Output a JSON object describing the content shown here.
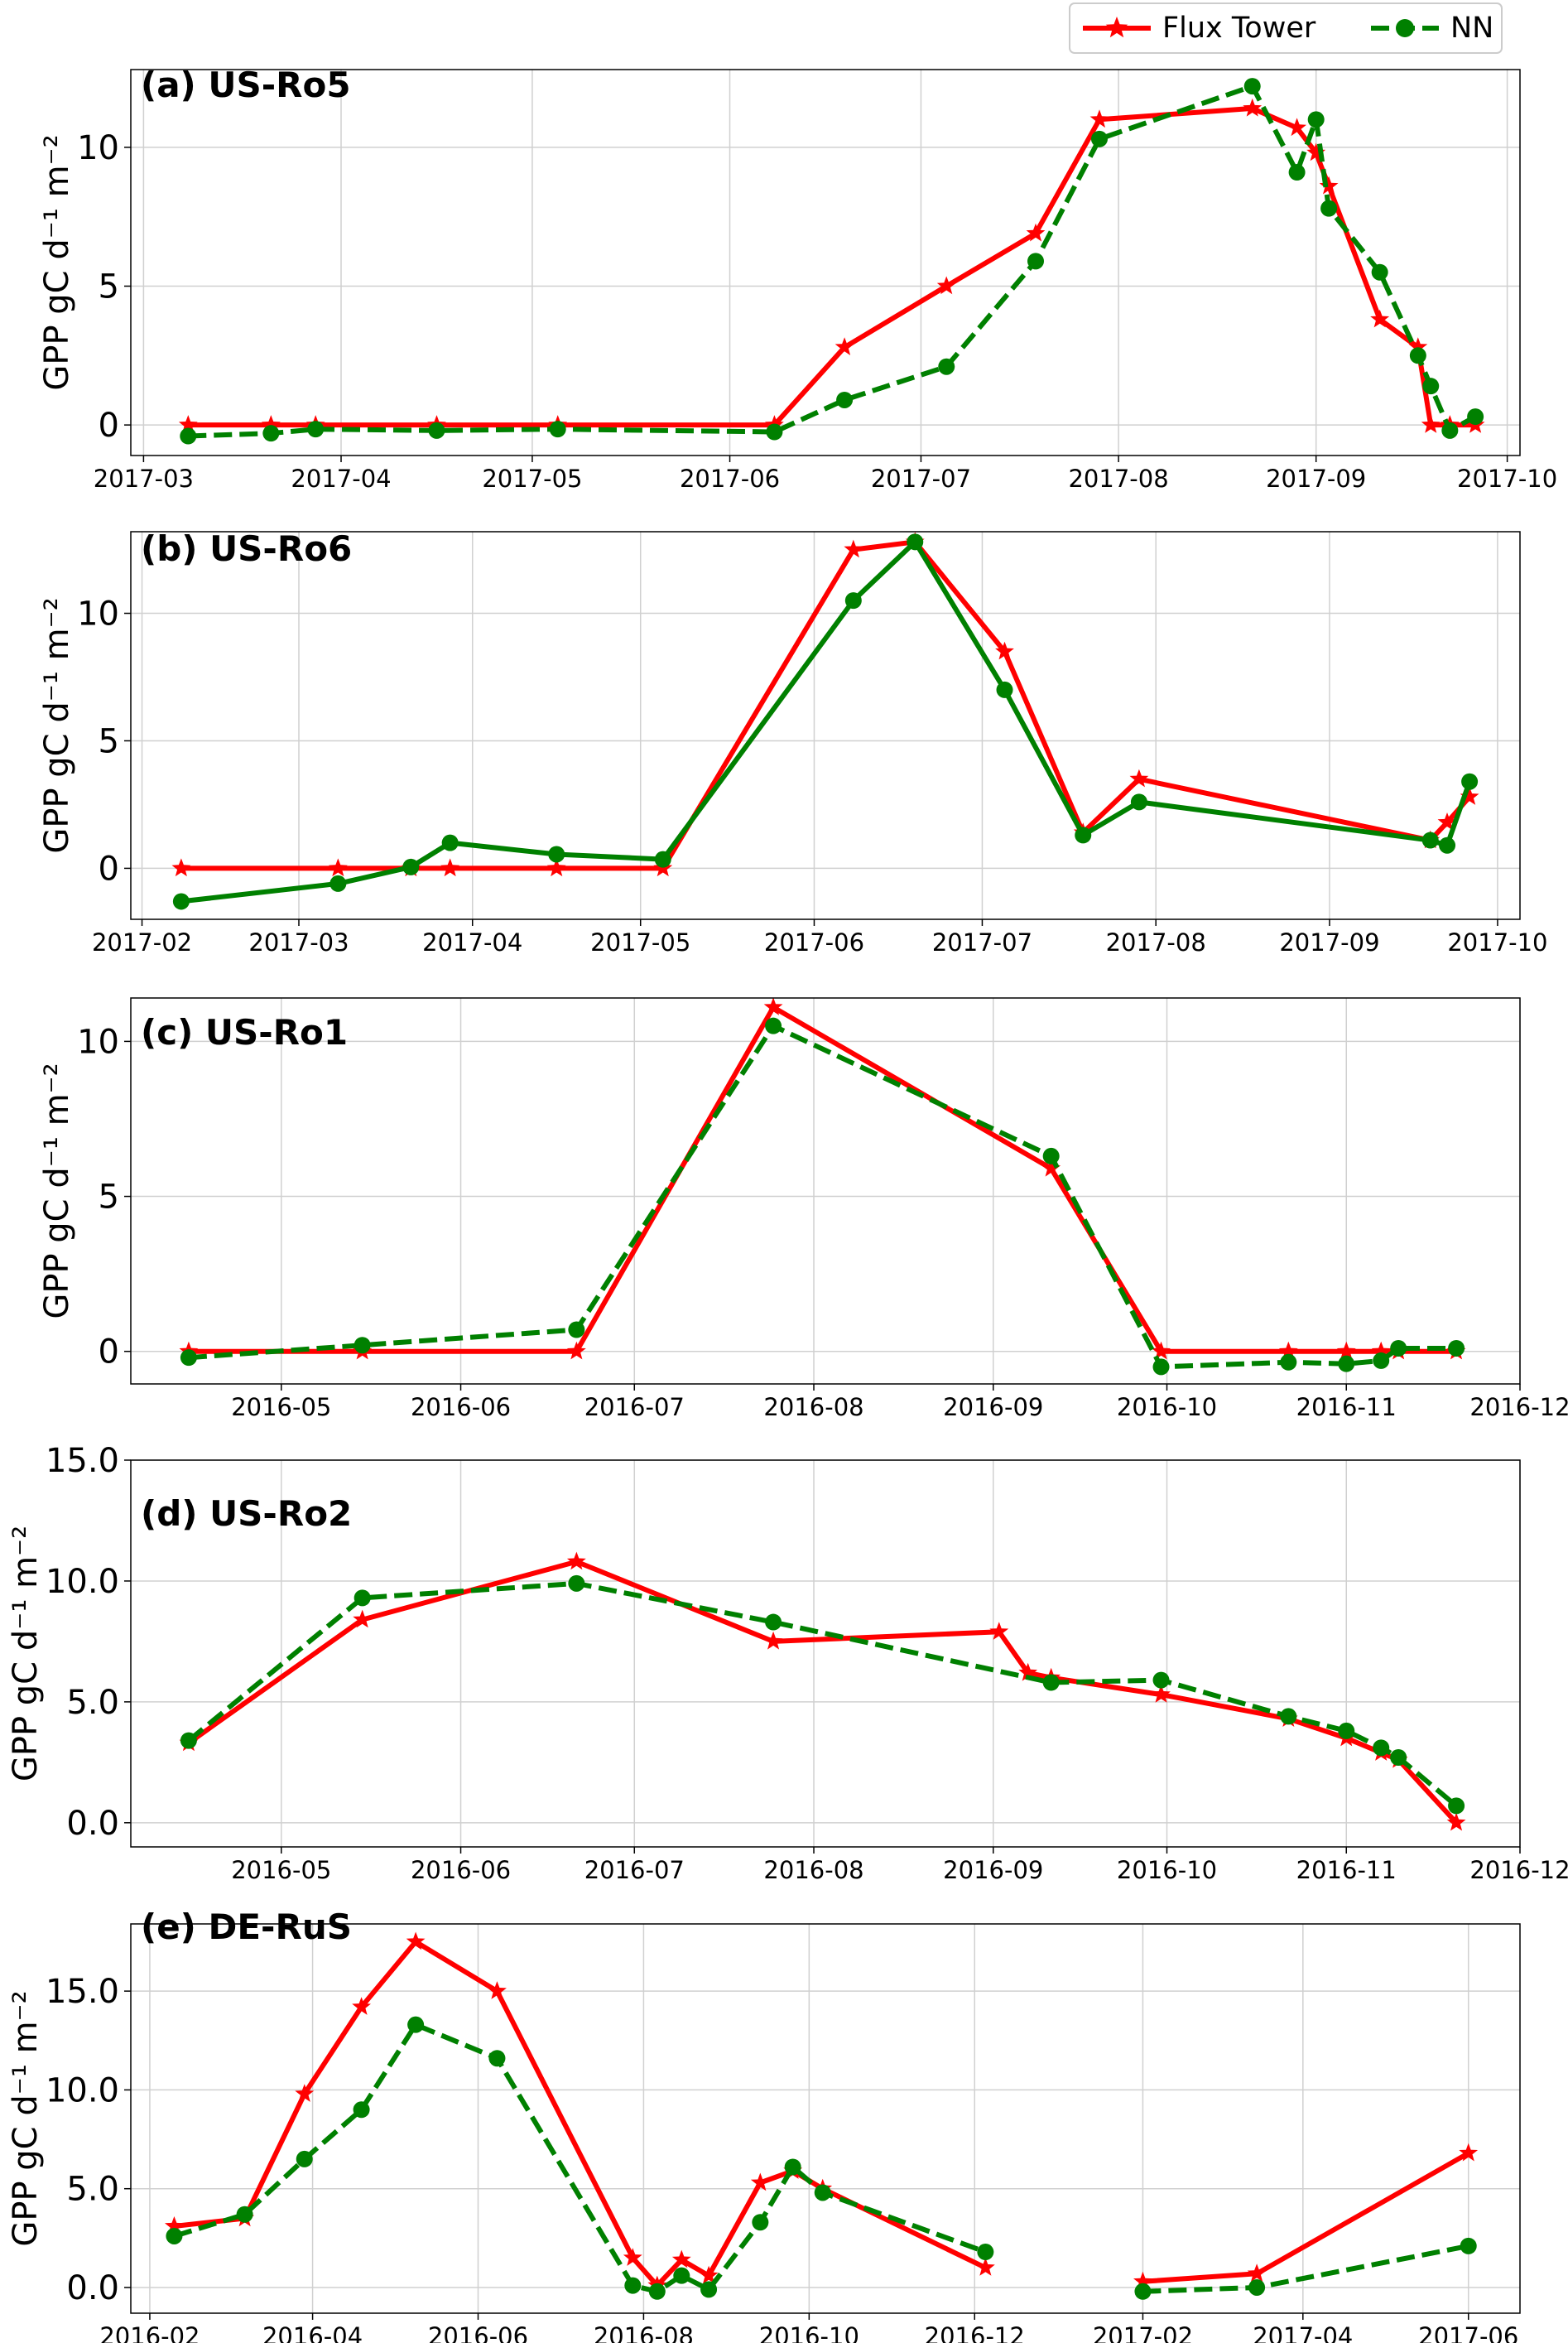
{
  "legend": {
    "location": "top-right",
    "entries": [
      {
        "label": "Flux Tower",
        "color": "#ff0000",
        "marker": "star",
        "style": "solid"
      },
      {
        "label": "NN",
        "color": "#008000",
        "marker": "circle",
        "style": "dashed"
      }
    ]
  },
  "chart_data": [
    {
      "type": "line",
      "title": "(a) US-Ro5",
      "ylabel": "GPP gC d⁻¹ m⁻²",
      "xlim": [
        "2017-02-27",
        "2017-10-03"
      ],
      "ylim": [
        -1.1,
        12.8
      ],
      "xticks": [
        "2017-03-01",
        "2017-04-01",
        "2017-05-01",
        "2017-06-01",
        "2017-07-01",
        "2017-08-01",
        "2017-09-01",
        "2017-10-01"
      ],
      "xtick_labels": [
        "2017-03",
        "2017-04",
        "2017-05",
        "2017-06",
        "2017-07",
        "2017-08",
        "2017-09",
        "2017-10"
      ],
      "yticks": [
        0,
        5,
        10
      ],
      "ytick_labels": [
        "0",
        "5",
        "10"
      ],
      "grid": true,
      "series": [
        {
          "name": "Flux Tower",
          "color": "#ff0000",
          "marker": "star",
          "dashed": false,
          "x": [
            "2017-03-08",
            "2017-03-21",
            "2017-03-28",
            "2017-04-16",
            "2017-05-05",
            "2017-06-08",
            "2017-06-19",
            "2017-07-05",
            "2017-07-19",
            "2017-07-29",
            "2017-08-22",
            "2017-08-29",
            "2017-09-01",
            "2017-09-03",
            "2017-09-11",
            "2017-09-17",
            "2017-09-19",
            "2017-09-22",
            "2017-09-26"
          ],
          "y": [
            0,
            0,
            0,
            0,
            0,
            0,
            2.8,
            5.0,
            6.9,
            11.0,
            11.4,
            10.7,
            9.8,
            8.6,
            3.8,
            2.8,
            0,
            0,
            0
          ]
        },
        {
          "name": "NN",
          "color": "#008000",
          "marker": "circle",
          "dashed": true,
          "x": [
            "2017-03-08",
            "2017-03-21",
            "2017-03-28",
            "2017-04-16",
            "2017-05-05",
            "2017-06-08",
            "2017-06-19",
            "2017-07-05",
            "2017-07-19",
            "2017-07-29",
            "2017-08-22",
            "2017-08-29",
            "2017-09-01",
            "2017-09-03",
            "2017-09-11",
            "2017-09-17",
            "2017-09-19",
            "2017-09-22",
            "2017-09-26"
          ],
          "y": [
            -0.4,
            -0.3,
            -0.15,
            -0.2,
            -0.15,
            -0.25,
            0.9,
            2.1,
            5.9,
            10.3,
            12.2,
            9.1,
            11.0,
            7.8,
            5.5,
            2.5,
            1.4,
            -0.2,
            0.3
          ]
        }
      ]
    },
    {
      "type": "line",
      "title": "(b) US-Ro6",
      "ylabel": "GPP gC d⁻¹ m⁻²",
      "xlim": [
        "2017-01-30",
        "2017-10-05"
      ],
      "ylim": [
        -2.0,
        13.2
      ],
      "xticks": [
        "2017-02-01",
        "2017-03-01",
        "2017-04-01",
        "2017-05-01",
        "2017-06-01",
        "2017-07-01",
        "2017-08-01",
        "2017-09-01",
        "2017-10-01"
      ],
      "xtick_labels": [
        "2017-02",
        "2017-03",
        "2017-04",
        "2017-05",
        "2017-06",
        "2017-07",
        "2017-08",
        "2017-09",
        "2017-10"
      ],
      "yticks": [
        0,
        5,
        10
      ],
      "ytick_labels": [
        "0",
        "5",
        "10"
      ],
      "grid": true,
      "series": [
        {
          "name": "Flux Tower",
          "color": "#ff0000",
          "marker": "star",
          "dashed": false,
          "x": [
            "2017-02-08",
            "2017-03-08",
            "2017-03-21",
            "2017-03-28",
            "2017-04-16",
            "2017-05-05",
            "2017-06-08",
            "2017-06-19",
            "2017-07-05",
            "2017-07-19",
            "2017-07-29",
            "2017-09-19",
            "2017-09-22",
            "2017-09-26"
          ],
          "y": [
            0,
            0,
            0,
            0,
            0,
            0,
            12.5,
            12.8,
            8.5,
            1.4,
            3.5,
            1.1,
            1.8,
            2.8
          ]
        },
        {
          "name": "NN",
          "color": "#008000",
          "marker": "circle",
          "dashed": false,
          "x": [
            "2017-02-08",
            "2017-03-08",
            "2017-03-21",
            "2017-03-28",
            "2017-04-16",
            "2017-05-05",
            "2017-06-08",
            "2017-06-19",
            "2017-07-05",
            "2017-07-19",
            "2017-07-29",
            "2017-09-19",
            "2017-09-22",
            "2017-09-26"
          ],
          "y": [
            -1.3,
            -0.6,
            0.05,
            1.0,
            0.55,
            0.35,
            10.5,
            12.8,
            7.0,
            1.3,
            2.6,
            1.1,
            0.9,
            3.4
          ]
        }
      ]
    },
    {
      "type": "line",
      "title": "(c) US-Ro1",
      "ylabel": "GPP gC d⁻¹ m⁻²",
      "xlim": [
        "2016-04-05",
        "2016-12-01"
      ],
      "ylim": [
        -1.05,
        11.4
      ],
      "xticks": [
        "2016-05-01",
        "2016-06-01",
        "2016-07-01",
        "2016-08-01",
        "2016-09-01",
        "2016-10-01",
        "2016-11-01",
        "2016-12-01"
      ],
      "xtick_labels": [
        "2016-05",
        "2016-06",
        "2016-07",
        "2016-08",
        "2016-09",
        "2016-10",
        "2016-11",
        "2016-12"
      ],
      "yticks": [
        0,
        5,
        10
      ],
      "ytick_labels": [
        "0",
        "5",
        "10"
      ],
      "grid": true,
      "series": [
        {
          "name": "Flux Tower",
          "color": "#ff0000",
          "marker": "star",
          "dashed": false,
          "x": [
            "2016-04-15",
            "2016-05-15",
            "2016-06-21",
            "2016-07-25",
            "2016-09-11",
            "2016-09-30",
            "2016-10-22",
            "2016-11-01",
            "2016-11-07",
            "2016-11-10",
            "2016-11-20"
          ],
          "y": [
            0,
            0,
            0,
            11.1,
            5.9,
            0,
            0,
            0,
            0,
            0,
            0
          ]
        },
        {
          "name": "NN",
          "color": "#008000",
          "marker": "circle",
          "dashed": true,
          "x": [
            "2016-04-15",
            "2016-05-15",
            "2016-06-21",
            "2016-07-25",
            "2016-09-11",
            "2016-09-30",
            "2016-10-22",
            "2016-11-01",
            "2016-11-07",
            "2016-11-10",
            "2016-11-20"
          ],
          "y": [
            -0.2,
            0.2,
            0.7,
            10.5,
            6.3,
            -0.5,
            -0.35,
            -0.4,
            -0.3,
            0.1,
            0.1
          ]
        }
      ]
    },
    {
      "type": "line",
      "title": "(d) US-Ro2",
      "ylabel": "GPP gC d⁻¹ m⁻²",
      "xlim": [
        "2016-04-05",
        "2016-12-01"
      ],
      "ylim": [
        -1.0,
        15.0
      ],
      "xticks": [
        "2016-05-01",
        "2016-06-01",
        "2016-07-01",
        "2016-08-01",
        "2016-09-01",
        "2016-10-01",
        "2016-11-01",
        "2016-12-01"
      ],
      "xtick_labels": [
        "2016-05",
        "2016-06",
        "2016-07",
        "2016-08",
        "2016-09",
        "2016-10",
        "2016-11",
        "2016-12"
      ],
      "yticks": [
        0,
        5,
        10,
        15
      ],
      "ytick_labels": [
        "0.0",
        "5.0",
        "10.0",
        "15.0"
      ],
      "grid": true,
      "series": [
        {
          "name": "Flux Tower",
          "color": "#ff0000",
          "marker": "star",
          "dashed": false,
          "x": [
            "2016-04-15",
            "2016-05-15",
            "2016-06-21",
            "2016-07-25",
            "2016-09-02",
            "2016-09-07",
            "2016-09-11",
            "2016-09-30",
            "2016-10-22",
            "2016-11-01",
            "2016-11-07",
            "2016-11-10",
            "2016-11-20"
          ],
          "y": [
            3.3,
            8.4,
            10.8,
            7.5,
            7.9,
            6.2,
            6.0,
            5.3,
            4.3,
            3.5,
            2.9,
            2.6,
            0.0
          ]
        },
        {
          "name": "NN",
          "color": "#008000",
          "marker": "circle",
          "dashed": true,
          "x": [
            "2016-04-15",
            "2016-05-15",
            "2016-06-21",
            "2016-07-25",
            "2016-09-11",
            "2016-09-30",
            "2016-10-22",
            "2016-11-01",
            "2016-11-07",
            "2016-11-10",
            "2016-11-20"
          ],
          "y": [
            3.4,
            9.3,
            9.9,
            8.3,
            5.8,
            5.9,
            4.4,
            3.8,
            3.1,
            2.7,
            0.7
          ]
        }
      ]
    },
    {
      "type": "line",
      "title": "(e) DE-RuS",
      "ylabel": "GPP gC d⁻¹ m⁻²",
      "xlim": [
        "2016-01-25",
        "2017-06-20"
      ],
      "ylim": [
        -1.3,
        18.4
      ],
      "xticks": [
        "2016-02-01",
        "2016-04-01",
        "2016-06-01",
        "2016-08-01",
        "2016-10-01",
        "2016-12-01",
        "2017-02-01",
        "2017-04-01",
        "2017-06-01"
      ],
      "xtick_labels": [
        "2016-02",
        "2016-04",
        "2016-06",
        "2016-08",
        "2016-10",
        "2016-12",
        "2017-02",
        "2017-04",
        "2017-06"
      ],
      "yticks": [
        0,
        5,
        10,
        15
      ],
      "ytick_labels": [
        "0.0",
        "5.0",
        "10.0",
        "15.0"
      ],
      "grid": true,
      "series": [
        {
          "name": "Flux Tower",
          "color": "#ff0000",
          "marker": "star",
          "dashed": false,
          "segments": [
            {
              "x": [
                "2016-02-10",
                "2016-03-07",
                "2016-03-29",
                "2016-04-19",
                "2016-05-09",
                "2016-06-08",
                "2016-07-28",
                "2016-08-06",
                "2016-08-15",
                "2016-08-25",
                "2016-09-13",
                "2016-09-25",
                "2016-10-06",
                "2016-12-05"
              ],
              "y": [
                3.1,
                3.5,
                9.8,
                14.2,
                17.5,
                15.0,
                1.5,
                0.1,
                1.4,
                0.6,
                5.3,
                5.9,
                5.0,
                1.0
              ]
            },
            {
              "x": [
                "2017-02-01",
                "2017-03-15",
                "2017-06-01"
              ],
              "y": [
                0.3,
                0.7,
                6.8
              ]
            }
          ]
        },
        {
          "name": "NN",
          "color": "#008000",
          "marker": "circle",
          "dashed": true,
          "segments": [
            {
              "x": [
                "2016-02-10",
                "2016-03-07",
                "2016-03-29",
                "2016-04-19",
                "2016-05-09",
                "2016-06-08",
                "2016-07-28",
                "2016-08-06",
                "2016-08-15",
                "2016-08-25",
                "2016-09-13",
                "2016-09-25",
                "2016-10-06",
                "2016-12-05"
              ],
              "y": [
                2.6,
                3.7,
                6.5,
                9.0,
                13.3,
                11.6,
                0.1,
                -0.2,
                0.6,
                -0.1,
                3.3,
                6.1,
                4.8,
                1.8
              ]
            },
            {
              "x": [
                "2017-02-01",
                "2017-03-15",
                "2017-06-01"
              ],
              "y": [
                -0.2,
                0.0,
                2.1
              ]
            }
          ]
        }
      ]
    }
  ]
}
